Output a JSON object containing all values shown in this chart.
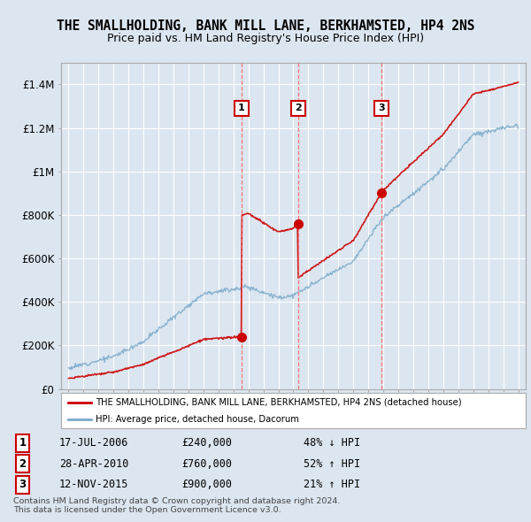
{
  "title": "THE SMALLHOLDING, BANK MILL LANE, BERKHAMSTED, HP4 2NS",
  "subtitle": "Price paid vs. HM Land Registry's House Price Index (HPI)",
  "ylim": [
    0,
    1500000
  ],
  "xlim": [
    1994.5,
    2025.5
  ],
  "background_color": "#dce6f0",
  "plot_bg_color": "#dce6f0",
  "grid_color": "#ffffff",
  "sale_dates": [
    2006.54,
    2010.32,
    2015.87
  ],
  "sale_prices": [
    240000,
    760000,
    900000
  ],
  "sale_labels": [
    "1",
    "2",
    "3"
  ],
  "sale_info": [
    {
      "num": "1",
      "date": "17-JUL-2006",
      "price": "£240,000",
      "hpi": "48% ↓ HPI"
    },
    {
      "num": "2",
      "date": "28-APR-2010",
      "price": "£760,000",
      "hpi": "52% ↑ HPI"
    },
    {
      "num": "3",
      "date": "12-NOV-2015",
      "price": "£900,000",
      "hpi": "21% ↑ HPI"
    }
  ],
  "legend_property_label": "THE SMALLHOLDING, BANK MILL LANE, BERKHAMSTED, HP4 2NS (detached house)",
  "legend_hpi_label": "HPI: Average price, detached house, Dacorum",
  "footer": "Contains HM Land Registry data © Crown copyright and database right 2024.\nThis data is licensed under the Open Government Licence v3.0.",
  "red_color": "#cc0000",
  "blue_color": "#7aaaca",
  "vline_color": "#ff6666",
  "marker_color": "#cc0000",
  "yticks": [
    0,
    200000,
    400000,
    600000,
    800000,
    1000000,
    1200000,
    1400000
  ],
  "ytick_labels": [
    "£0",
    "£200K",
    "£400K",
    "£600K",
    "£800K",
    "£1M",
    "£1.2M",
    "£1.4M"
  ]
}
